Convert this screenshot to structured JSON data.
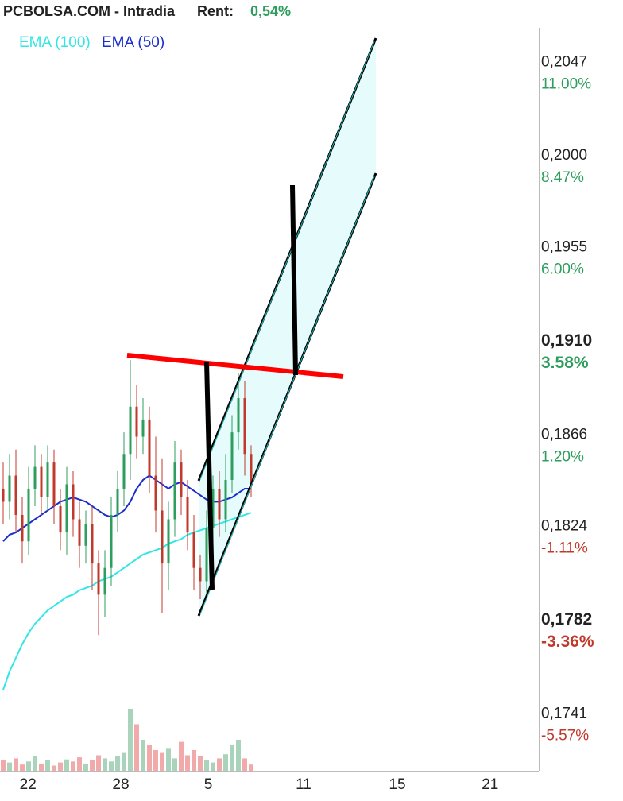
{
  "chart_data": {
    "type": "candlestick",
    "header": {
      "title": "PCBOLSA.COM - Intradia",
      "rent_label": "Rent:",
      "rent_value": "0,54%"
    },
    "log_y": true,
    "grid": true,
    "ylim": [
      0.1721,
      0.207
    ],
    "yticks": [
      {
        "value": 0.2047,
        "label": "0,2047",
        "change": {
          "value": 11.0,
          "label": "11.00%"
        }
      },
      {
        "value": 0.2,
        "label": "0,2000",
        "change": {
          "value": 8.47,
          "label": "8.47%"
        }
      },
      {
        "value": 0.1955,
        "label": "0,1955",
        "change": {
          "value": 6.0,
          "label": "6.00%"
        }
      },
      {
        "value": 0.191,
        "label": "0,1910",
        "change": {
          "value": 3.58,
          "label": "3.58%"
        }
      },
      {
        "value": 0.1866,
        "label": "0,1866",
        "change": {
          "value": 1.2,
          "label": "1.20%"
        }
      },
      {
        "value": 0.1824,
        "label": "0,1824",
        "change": {
          "value": -1.11,
          "label": "-1.11%"
        }
      },
      {
        "value": 0.1782,
        "label": "0,1782",
        "change": {
          "value": -3.36,
          "label": "-3.36%"
        }
      },
      {
        "value": 0.1741,
        "label": "0,1741",
        "change": {
          "value": -5.57,
          "label": "-5.57%"
        }
      }
    ],
    "xlim": [
      -0.5,
      84.25
    ],
    "xticks": [
      {
        "value": 3.9,
        "label": "22"
      },
      {
        "value": 18.5,
        "label": "28"
      },
      {
        "value": 32.25,
        "label": "5"
      },
      {
        "value": 47.25,
        "label": "11"
      },
      {
        "value": 62,
        "label": "15"
      },
      {
        "value": 76.6,
        "label": "21"
      }
    ],
    "up_color": "#2e9e5e",
    "down_color": "#c0392b",
    "open": [
      0.1846,
      0.184,
      0.1852,
      0.1834,
      0.1822,
      0.1846,
      0.1856,
      0.1842,
      0.1858,
      0.1838,
      0.1826,
      0.1848,
      0.1832,
      0.182,
      0.183,
      0.1812,
      0.1798,
      0.181,
      0.1834,
      0.1846,
      0.1862,
      0.1884,
      0.187,
      0.1878,
      0.1852,
      0.1836,
      0.1812,
      0.1832,
      0.1858,
      0.1842,
      0.1826,
      0.181,
      0.1804,
      0.1828,
      0.1846,
      0.1832,
      0.185,
      0.1872,
      0.1888,
      0.1862
    ],
    "high": [
      0.1858,
      0.1862,
      0.1864,
      0.1842,
      0.1856,
      0.1866,
      0.1862,
      0.1866,
      0.1864,
      0.1846,
      0.1856,
      0.1854,
      0.184,
      0.1836,
      0.1838,
      0.1818,
      0.1818,
      0.1842,
      0.1854,
      0.1872,
      0.1906,
      0.1894,
      0.1888,
      0.1884,
      0.187,
      0.186,
      0.184,
      0.1868,
      0.1864,
      0.185,
      0.1834,
      0.1816,
      0.1836,
      0.1852,
      0.1854,
      0.1862,
      0.188,
      0.19,
      0.1896,
      0.1866
    ],
    "low": [
      0.183,
      0.1832,
      0.1826,
      0.1812,
      0.1816,
      0.1838,
      0.1834,
      0.1836,
      0.183,
      0.1818,
      0.1816,
      0.1824,
      0.181,
      0.1812,
      0.18,
      0.178,
      0.1788,
      0.1802,
      0.1826,
      0.1838,
      0.185,
      0.186,
      0.1862,
      0.1844,
      0.1826,
      0.179,
      0.18,
      0.1824,
      0.1834,
      0.1818,
      0.18,
      0.1796,
      0.1798,
      0.182,
      0.1824,
      0.1826,
      0.1844,
      0.1864,
      0.1852,
      0.1842
    ],
    "close": [
      0.184,
      0.1852,
      0.1834,
      0.1822,
      0.1846,
      0.1856,
      0.1842,
      0.1858,
      0.1838,
      0.1826,
      0.1848,
      0.1832,
      0.182,
      0.183,
      0.1812,
      0.1798,
      0.181,
      0.1834,
      0.1846,
      0.1862,
      0.1884,
      0.187,
      0.1878,
      0.1852,
      0.1836,
      0.1812,
      0.1832,
      0.1858,
      0.1842,
      0.1826,
      0.181,
      0.1804,
      0.1828,
      0.1846,
      0.1832,
      0.185,
      0.1872,
      0.1888,
      0.1862,
      0.1848
    ],
    "vlim": [
      0,
      100
    ],
    "volume": [
      10,
      8,
      12,
      6,
      9,
      14,
      7,
      10,
      5,
      8,
      11,
      9,
      13,
      7,
      10,
      15,
      12,
      9,
      14,
      18,
      60,
      45,
      30,
      25,
      20,
      18,
      22,
      12,
      28,
      15,
      20,
      14,
      10,
      8,
      12,
      16,
      25,
      30,
      12,
      6
    ],
    "series": [
      {
        "name": "EMA (100)",
        "color": "#33e6e6",
        "values": [
          0.1756,
          0.1764,
          0.177,
          0.1776,
          0.1781,
          0.1785,
          0.1788,
          0.1791,
          0.1793,
          0.1795,
          0.1797,
          0.1798,
          0.18,
          0.1801,
          0.1802,
          0.1804,
          0.1805,
          0.1806,
          0.1808,
          0.181,
          0.1812,
          0.1814,
          0.1816,
          0.1817,
          0.1818,
          0.1819,
          0.1821,
          0.1822,
          0.1823,
          0.1825,
          0.1826,
          0.1827,
          0.1828,
          0.1829,
          0.183,
          0.1831,
          0.1832,
          0.1833,
          0.1834,
          0.1835
        ]
      },
      {
        "name": "EMA (50)",
        "color": "#1a2ecc",
        "values": [
          0.1822,
          0.1825,
          0.1826,
          0.1828,
          0.183,
          0.1832,
          0.1834,
          0.1836,
          0.1838,
          0.184,
          0.1841,
          0.1842,
          0.1841,
          0.184,
          0.1838,
          0.1836,
          0.1834,
          0.1833,
          0.1834,
          0.1836,
          0.184,
          0.1846,
          0.185,
          0.1852,
          0.185,
          0.1848,
          0.1846,
          0.1848,
          0.1849,
          0.1847,
          0.1845,
          0.1843,
          0.1841,
          0.184,
          0.184,
          0.1841,
          0.1842,
          0.1844,
          0.1846,
          0.1846
        ]
      }
    ]
  }
}
